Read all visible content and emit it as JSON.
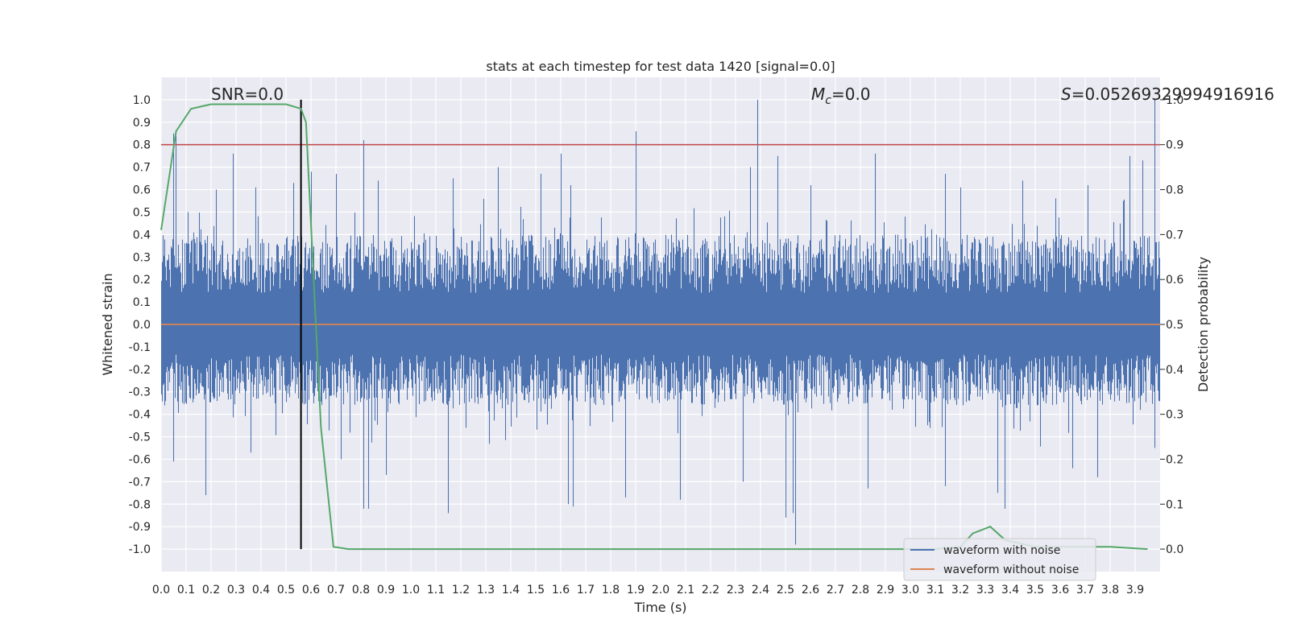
{
  "chart_data": {
    "type": "line",
    "title": "stats at each timestep for test data 1420 [signal=0.0]",
    "xlabel": "Time (s)",
    "ylabel": "Whitened strain",
    "y2label": "Detection probability",
    "xlim": [
      0.0,
      4.0
    ],
    "ylim": [
      -1.1,
      1.1
    ],
    "y2lim": [
      -0.05,
      1.05
    ],
    "grid": true,
    "x_ticks": [
      "0.0",
      "0.1",
      "0.2",
      "0.3",
      "0.4",
      "0.5",
      "0.6",
      "0.7",
      "0.8",
      "0.9",
      "1.0",
      "1.1",
      "1.2",
      "1.3",
      "1.4",
      "1.5",
      "1.6",
      "1.7",
      "1.8",
      "1.9",
      "2.0",
      "2.1",
      "2.2",
      "2.3",
      "2.4",
      "2.5",
      "2.6",
      "2.7",
      "2.8",
      "2.9",
      "3.0",
      "3.1",
      "3.2",
      "3.3",
      "3.4",
      "3.5",
      "3.6",
      "3.7",
      "3.8",
      "3.9"
    ],
    "y_ticks": [
      "1.0",
      "0.9",
      "0.8",
      "0.7",
      "0.6",
      "0.5",
      "0.4",
      "0.3",
      "0.2",
      "0.1",
      "0.0",
      "-0.1",
      "-0.2",
      "-0.3",
      "-0.4",
      "-0.5",
      "-0.6",
      "-0.7",
      "-0.8",
      "-0.9",
      "-1.0"
    ],
    "y2_ticks": [
      "1.0",
      "0.9",
      "0.8",
      "0.7",
      "0.6",
      "0.5",
      "0.4",
      "0.3",
      "0.2",
      "0.1",
      "0.0"
    ],
    "annotations": {
      "snr": "SNR=0.0",
      "mc_symbol": "M",
      "mc_sub": "c",
      "mc_value": "=0.0",
      "s_symbol": "S",
      "s_value": "=0.05269329994916916"
    },
    "legend": {
      "placement": "lower-right",
      "entries": [
        "waveform with noise",
        "waveform without noise"
      ]
    },
    "threshold_y2": 0.9,
    "marker_x": 0.56,
    "noise_series": {
      "name": "waveform with noise",
      "color": "#4c72b0",
      "envelope_hi": 0.4,
      "envelope_lo": -0.3,
      "peaks_x": [
        0.05,
        0.06,
        0.22,
        0.29,
        0.38,
        0.53,
        0.6,
        0.7,
        0.81,
        0.87,
        1.17,
        1.35,
        1.52,
        1.6,
        1.64,
        1.9,
        2.36,
        2.39,
        2.47,
        2.6,
        2.86,
        3.14,
        3.2,
        3.45,
        3.71,
        3.88,
        3.93,
        3.98
      ],
      "peaks_y": [
        0.85,
        0.84,
        0.6,
        0.76,
        0.61,
        0.63,
        0.68,
        0.67,
        0.82,
        0.64,
        0.65,
        0.7,
        0.67,
        0.76,
        0.62,
        0.86,
        0.7,
        1.0,
        0.75,
        0.62,
        0.76,
        0.67,
        0.61,
        0.64,
        0.62,
        0.75,
        0.73,
        1.0
      ],
      "troughs_x": [
        0.05,
        0.18,
        0.36,
        0.56,
        0.72,
        0.81,
        0.83,
        0.9,
        1.15,
        1.63,
        1.65,
        1.86,
        2.08,
        2.33,
        2.5,
        2.53,
        2.54,
        2.83,
        3.14,
        3.35,
        3.38,
        3.65,
        3.75,
        3.98
      ],
      "troughs_y": [
        -0.61,
        -0.76,
        -0.57,
        -0.61,
        -0.6,
        -0.82,
        -0.82,
        -0.67,
        -0.84,
        -0.8,
        -0.81,
        -0.77,
        -0.78,
        -0.7,
        -0.86,
        -0.84,
        -0.98,
        -0.73,
        -0.72,
        -0.75,
        -0.82,
        -0.64,
        -0.68,
        -0.55
      ]
    },
    "clean_series": {
      "name": "waveform without noise",
      "color": "#dd8452",
      "x": [
        0.0,
        4.0
      ],
      "y": [
        0.0,
        0.0
      ]
    },
    "probability_series": {
      "color": "#55a868",
      "x": [
        0.0,
        0.06,
        0.12,
        0.2,
        0.3,
        0.4,
        0.5,
        0.56,
        0.58,
        0.64,
        0.69,
        0.75,
        0.85,
        1.0,
        1.5,
        2.0,
        2.5,
        3.0,
        3.1,
        3.2,
        3.25,
        3.32,
        3.38,
        3.5,
        3.6,
        3.7,
        3.8,
        3.95
      ],
      "y": [
        0.71,
        0.93,
        0.98,
        0.99,
        0.99,
        0.99,
        0.99,
        0.98,
        0.95,
        0.27,
        0.005,
        0.0,
        0.0,
        0.0,
        0.0,
        0.0,
        0.0,
        0.0,
        0.0,
        0.005,
        0.035,
        0.05,
        0.02,
        0.005,
        0.005,
        0.005,
        0.005,
        0.0
      ]
    }
  }
}
